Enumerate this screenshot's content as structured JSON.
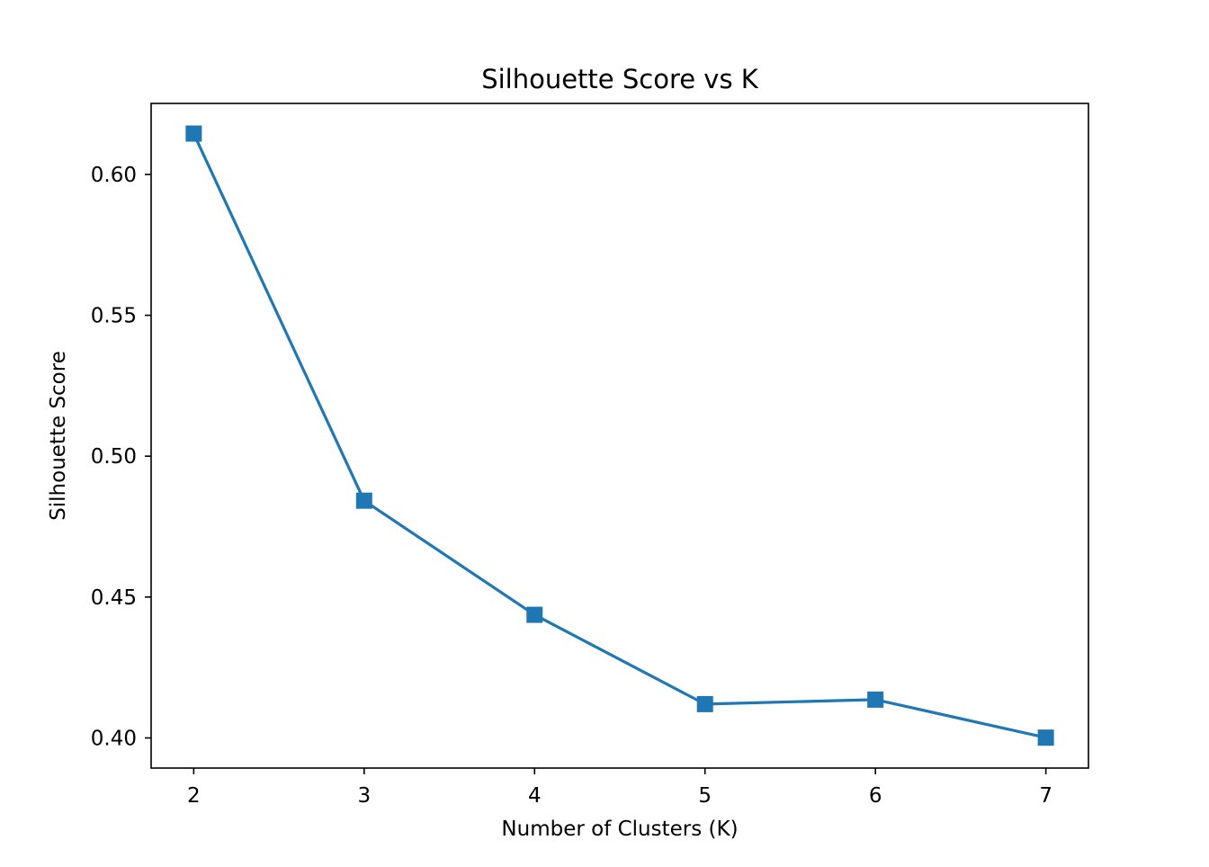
{
  "chart_data": {
    "type": "line",
    "title": "Silhouette Score vs K",
    "xlabel": "Number of Clusters (K)",
    "ylabel": "Silhouette Score",
    "x": [
      2,
      3,
      4,
      5,
      6,
      7
    ],
    "series": [
      {
        "values": [
          0.6145,
          0.4842,
          0.4437,
          0.412,
          0.4136,
          0.4001
        ],
        "color": "#1f77b4",
        "marker": "square"
      }
    ],
    "xlim": [
      1.75,
      7.25
    ],
    "ylim": [
      0.3893,
      0.6252
    ],
    "xticks": [
      2,
      3,
      4,
      5,
      6,
      7
    ],
    "xtick_labels": [
      "2",
      "3",
      "4",
      "5",
      "6",
      "7"
    ],
    "yticks": [
      0.4,
      0.45,
      0.5,
      0.55,
      0.6
    ],
    "ytick_labels": [
      "0.40",
      "0.45",
      "0.50",
      "0.55",
      "0.60"
    ],
    "grid": false,
    "legend": "none"
  }
}
